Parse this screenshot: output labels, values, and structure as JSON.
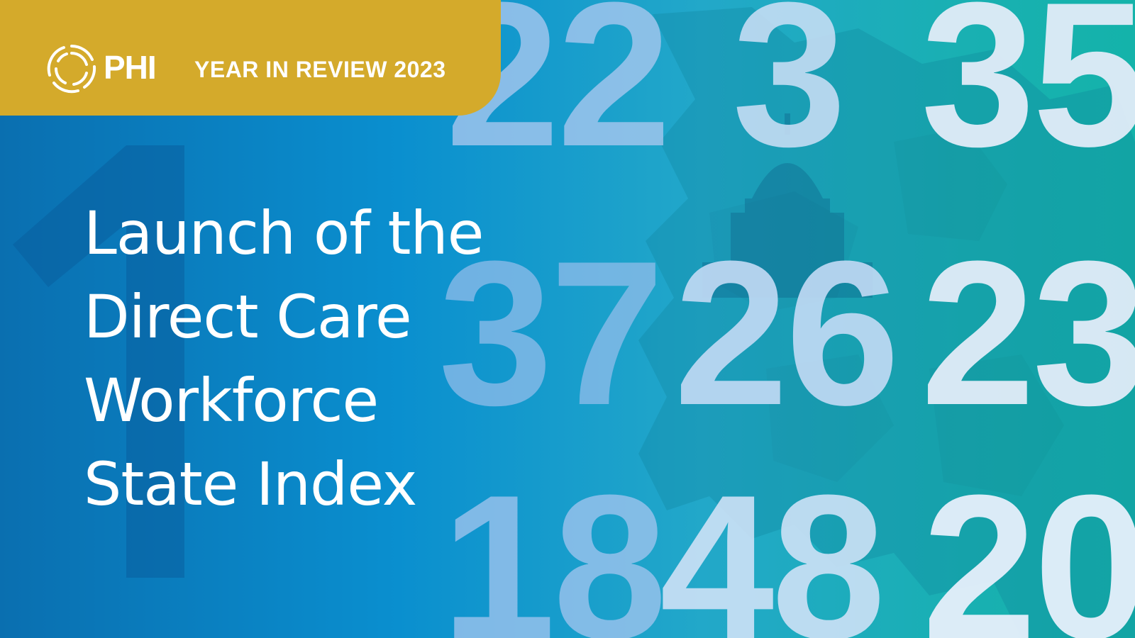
{
  "banner": {
    "brand": "PHI",
    "title": "YEAR IN REVIEW 2023",
    "logo_icon": "ring-logo-icon",
    "background_color": "#d4aa2b"
  },
  "headline": {
    "lines": [
      "Launch of the",
      "Direct Care",
      "Workforce",
      "State Index"
    ]
  },
  "background_numbers": [
    "22",
    "3",
    "35",
    "37",
    "26",
    "23",
    "18",
    "48",
    "20"
  ],
  "colors": {
    "gradient_left": "#0a6fb0",
    "gradient_right": "#14b3aa",
    "text": "#ffffff"
  }
}
